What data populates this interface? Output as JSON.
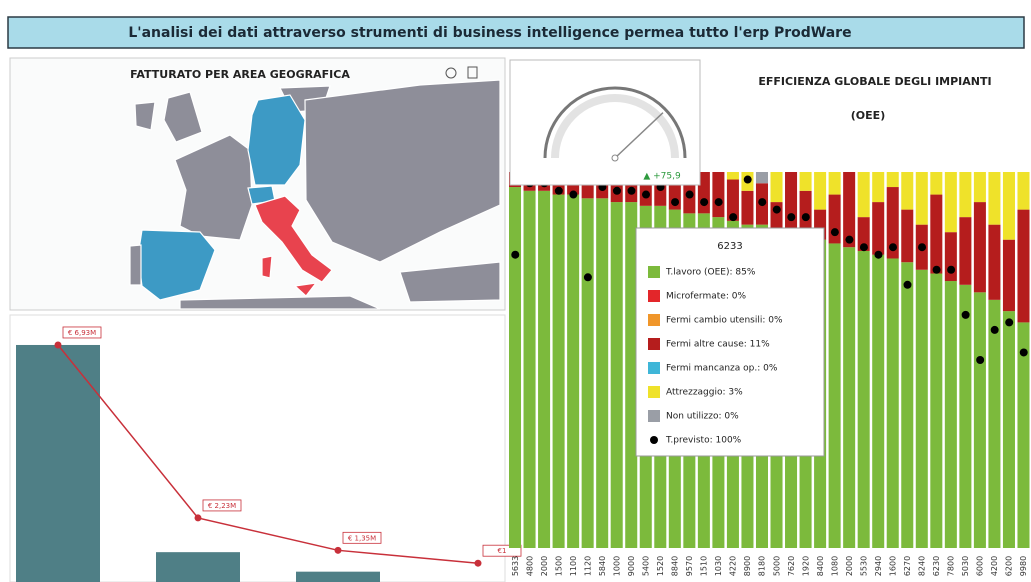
{
  "header": {
    "title": "L'analisi dei dati attraverso strumenti di business intelligence permea tutto l'erp ProdWare"
  },
  "map": {
    "title": "FATTURATO  PER  AREA  GEOGRAFICA"
  },
  "revenue": {
    "bars": [
      6.93,
      1.3,
      0.77
    ],
    "bar_color": "#4f7f86",
    "line": [
      6.93,
      2.23,
      1.35,
      1
    ],
    "line_labels": [
      "€ 6,93M",
      "€ 2,23M",
      "€ 1,35M",
      "€1"
    ],
    "line_color": "#c8303a",
    "ylim": [
      0,
      7.5
    ]
  },
  "gauge": {
    "value": 75.9,
    "value_label": "▲ +75,9",
    "lim": [
      0,
      100
    ]
  },
  "oee": {
    "title": "EFFICIENZA  GLOBALE  DEGLI  IMPIANTI",
    "subtitle": "(OEE)",
    "ylim": [
      0,
      100
    ],
    "categories": [
      "5633",
      "4800",
      "2000",
      "1500",
      "1100",
      "1120",
      "5840",
      "1000",
      "9000",
      "5400",
      "1520",
      "8840",
      "9570",
      "1510",
      "1030",
      "4220",
      "8900",
      "8180",
      "5000",
      "7620",
      "1920",
      "8400",
      "1080",
      "2000",
      "5530",
      "2940",
      "1600",
      "6270",
      "8240",
      "6230",
      "7800",
      "5030",
      "6000",
      "4200",
      "6200",
      "9980"
    ],
    "series": [
      {
        "name": "T.lavoro (OEE)",
        "color": "#7cba3c",
        "values": [
          96,
          95,
          95,
          94,
          94,
          93,
          93,
          92,
          92,
          91,
          91,
          90,
          89,
          89,
          88,
          87,
          86,
          86,
          85,
          84,
          83,
          82,
          81,
          80,
          79,
          78,
          77,
          76,
          74,
          73,
          71,
          70,
          68,
          66,
          63,
          60
        ]
      },
      {
        "name": "Fermi altre cause",
        "color": "#b51d1d",
        "values": [
          4,
          5,
          5,
          6,
          6,
          7,
          7,
          8,
          8,
          9,
          9,
          10,
          11,
          11,
          12,
          11,
          9,
          11,
          7,
          16,
          12,
          8,
          13,
          20,
          9,
          14,
          19,
          14,
          12,
          21,
          13,
          18,
          24,
          20,
          19,
          30
        ]
      },
      {
        "name": "Attrezzaggio",
        "color": "#efe22a",
        "values": [
          0,
          0,
          0,
          0,
          0,
          0,
          0,
          0,
          0,
          0,
          0,
          0,
          0,
          0,
          0,
          2,
          5,
          0,
          8,
          0,
          5,
          10,
          6,
          0,
          12,
          8,
          4,
          10,
          14,
          6,
          16,
          12,
          8,
          14,
          18,
          10
        ]
      },
      {
        "name": "Non utilizzo",
        "color": "#9a9ea6",
        "values": [
          0,
          0,
          0,
          0,
          0,
          0,
          0,
          0,
          0,
          0,
          0,
          0,
          0,
          0,
          0,
          0,
          0,
          3,
          0,
          0,
          0,
          0,
          0,
          0,
          0,
          0,
          0,
          0,
          0,
          0,
          0,
          0,
          0,
          0,
          0,
          0
        ]
      }
    ],
    "dots": {
      "name": "T.previsto",
      "color": "#000000",
      "values": [
        78,
        97,
        97,
        95,
        94,
        72,
        96,
        95,
        95,
        94,
        96,
        92,
        94,
        92,
        92,
        88,
        98,
        92,
        90,
        88,
        88,
        84,
        84,
        82,
        80,
        78,
        80,
        70,
        80,
        74,
        74,
        62,
        50,
        58,
        60,
        52
      ]
    }
  },
  "tooltip": {
    "title": "6233",
    "items": [
      {
        "label": "T.lavoro (OEE): 85%",
        "color": "#7cba3c"
      },
      {
        "label": "Microfermate: 0%",
        "color": "#e3262a"
      },
      {
        "label": "Fermi cambio utensili: 0%",
        "color": "#f0962a"
      },
      {
        "label": "Fermi altre cause: 11%",
        "color": "#b51d1d"
      },
      {
        "label": "Fermi mancanza op.: 0%",
        "color": "#3fb6d8"
      },
      {
        "label": "Attrezzaggio: 3%",
        "color": "#efe22a"
      },
      {
        "label": "Non utilizzo: 0%",
        "color": "#9a9ea6"
      },
      {
        "label": "T.previsto: 100%",
        "color": "#000000",
        "dot": true
      }
    ]
  }
}
